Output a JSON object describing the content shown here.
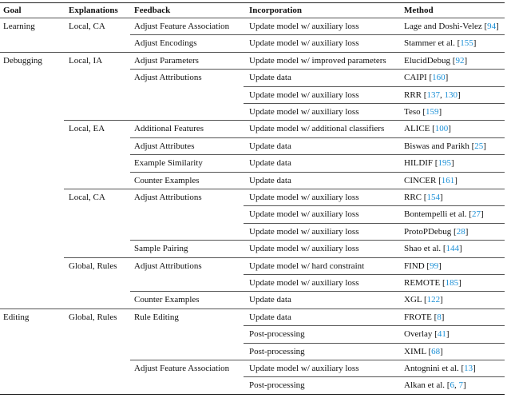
{
  "table": {
    "header": [
      "Goal",
      "Explanations",
      "Feedback",
      "Incorporation",
      "Method"
    ],
    "groups": [
      {
        "goal": "Learning",
        "explanations": [
          {
            "label": "Local, CA",
            "feedback": [
              {
                "label": "Adjust Feature Association",
                "rows": [
                  {
                    "incorporation": "Update model w/ auxiliary loss",
                    "method": "Lage and Doshi-Velez [94]"
                  }
                ]
              },
              {
                "label": "Adjust Encodings",
                "rows": [
                  {
                    "incorporation": "Update model w/ auxiliary loss",
                    "method": "Stammer et al. [155]"
                  }
                ]
              }
            ]
          }
        ]
      },
      {
        "goal": "Debugging",
        "explanations": [
          {
            "label": "Local, IA",
            "feedback": [
              {
                "label": "Adjust Parameters",
                "rows": [
                  {
                    "incorporation": "Update model w/ improved parameters",
                    "method": "ElucidDebug [92]"
                  }
                ]
              },
              {
                "label": "Adjust Attributions",
                "rows": [
                  {
                    "incorporation": "Update data",
                    "method": "CAIPI [160]"
                  },
                  {
                    "incorporation": "Update model w/ auxiliary loss",
                    "method": "RRR [137, 130]"
                  },
                  {
                    "incorporation": "Update model w/ auxiliary loss",
                    "method": "Teso [159]"
                  }
                ]
              }
            ]
          },
          {
            "label": "Local, EA",
            "feedback": [
              {
                "label": "Additional Features",
                "rows": [
                  {
                    "incorporation": "Update model w/ additional classifiers",
                    "method": "ALICE [100]"
                  }
                ]
              },
              {
                "label": "Adjust Attributes",
                "rows": [
                  {
                    "incorporation": "Update data",
                    "method": "Biswas and Parikh [25]"
                  }
                ]
              },
              {
                "label": "Example Similarity",
                "rows": [
                  {
                    "incorporation": "Update data",
                    "method": "HILDIF [195]"
                  }
                ]
              },
              {
                "label": "Counter Examples",
                "rows": [
                  {
                    "incorporation": "Update data",
                    "method": "CINCER [161]"
                  }
                ]
              }
            ]
          },
          {
            "label": "Local, CA",
            "feedback": [
              {
                "label": "Adjust Attributions",
                "rows": [
                  {
                    "incorporation": "Update model w/ auxiliary loss",
                    "method": "RRC [154]"
                  },
                  {
                    "incorporation": "Update model w/ auxiliary loss",
                    "method": "Bontempelli et al. [27]"
                  },
                  {
                    "incorporation": "Update model w/ auxiliary loss",
                    "method": "ProtoPDebug [28]"
                  }
                ]
              },
              {
                "label": "Sample Pairing",
                "rows": [
                  {
                    "incorporation": "Update model w/ auxiliary loss",
                    "method": "Shao et al. [144]"
                  }
                ]
              }
            ]
          },
          {
            "label": "Global, Rules",
            "feedback": [
              {
                "label": "Adjust Attributions",
                "rows": [
                  {
                    "incorporation": "Update model w/ hard constraint",
                    "method": "FIND [99]"
                  },
                  {
                    "incorporation": "Update model w/ auxiliary loss",
                    "method": "REMOTE [185]"
                  }
                ]
              },
              {
                "label": "Counter Examples",
                "rows": [
                  {
                    "incorporation": "Update data",
                    "method": "XGL [122]"
                  }
                ]
              }
            ]
          }
        ]
      },
      {
        "goal": "Editing",
        "explanations": [
          {
            "label": "Global, Rules",
            "feedback": [
              {
                "label": "Rule Editing",
                "rows": [
                  {
                    "incorporation": "Update data",
                    "method": "FROTE [8]"
                  },
                  {
                    "incorporation": "Post-processing",
                    "method": "Overlay [41]"
                  },
                  {
                    "incorporation": "Post-processing",
                    "method": "XIML [68]"
                  }
                ]
              },
              {
                "label": "Adjust Feature Association",
                "rows": [
                  {
                    "incorporation": "Update model w/ auxiliary loss",
                    "method": "Antognini et al. [13]"
                  },
                  {
                    "incorporation": "Post-processing",
                    "method": "Alkan et al. [6, 7]"
                  }
                ]
              }
            ]
          }
        ]
      }
    ]
  }
}
